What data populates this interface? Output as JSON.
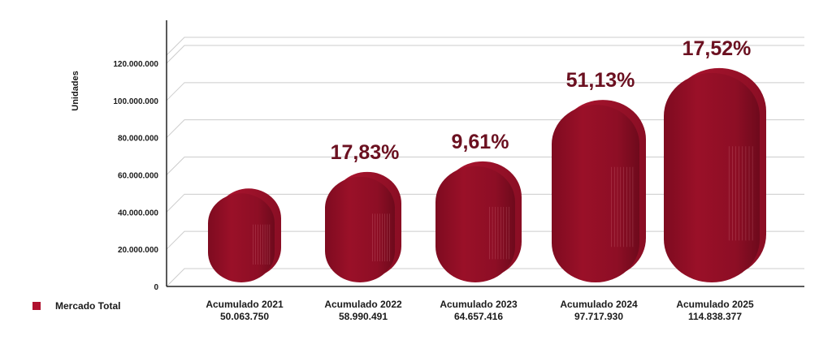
{
  "chart_data": {
    "type": "bar",
    "ylabel": "Unidades",
    "ylim": [
      0,
      120000000
    ],
    "yticks": [
      0,
      20000000,
      40000000,
      60000000,
      80000000,
      100000000,
      120000000
    ],
    "ytick_labels": [
      "0",
      "20.000.000",
      "40.000.000",
      "60.000.000",
      "80.000.000",
      "100.000.000",
      "120.000.000"
    ],
    "grid": true,
    "legend_position": "bottom-left",
    "categories": [
      "Acumulado 2021",
      "Acumulado 2022",
      "Acumulado 2023",
      "Acumulado 2024",
      "Acumulado 2025"
    ],
    "series": [
      {
        "name": "Mercado Total",
        "values": [
          50063750,
          58990491,
          64657416,
          97717930,
          114838377
        ],
        "value_labels": [
          "50.063.750",
          "58.990.491",
          "64.657.416",
          "97.717.930",
          "114.838.377"
        ]
      }
    ],
    "growth_labels": [
      "",
      "17,83%",
      "9,61%",
      "51,13%",
      "17,52%"
    ],
    "colors": {
      "bar": "#9a1028",
      "bar_light": "#c11a36",
      "bar_dark": "#6e0a1c",
      "growth_text": "#6b1020",
      "grid": "#cccccc",
      "axis": "#222222"
    }
  }
}
